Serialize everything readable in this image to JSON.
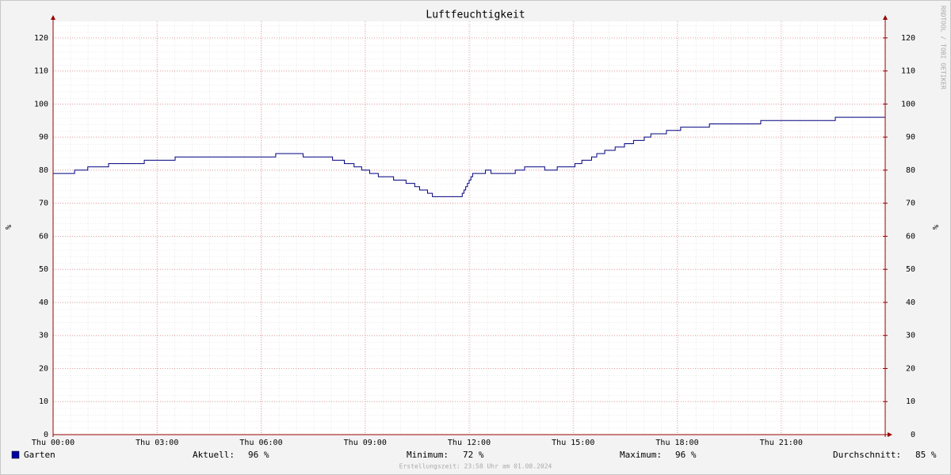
{
  "chart_data": {
    "type": "line",
    "step": true,
    "title": "Luftfeuchtigkeit",
    "y_label": "%",
    "y2_label": "%",
    "side_note": "RRDTOOL / TOBI OETIKER",
    "footer": "Erstellungszeit: 23:58 Uhr am 01.08.2024",
    "xlim": [
      0,
      24
    ],
    "xticks": [
      {
        "value": 0,
        "label": "Thu 00:00"
      },
      {
        "value": 3,
        "label": "Thu 03:00"
      },
      {
        "value": 6,
        "label": "Thu 06:00"
      },
      {
        "value": 9,
        "label": "Thu 09:00"
      },
      {
        "value": 12,
        "label": "Thu 12:00"
      },
      {
        "value": 15,
        "label": "Thu 15:00"
      },
      {
        "value": 18,
        "label": "Thu 18:00"
      },
      {
        "value": 21,
        "label": "Thu 21:00"
      }
    ],
    "ylim": [
      0,
      125
    ],
    "yticks": [
      0,
      10,
      20,
      30,
      40,
      50,
      60,
      70,
      80,
      90,
      100,
      110,
      120
    ],
    "y2lim": [
      0,
      125
    ],
    "y2ticks": [
      0,
      10,
      20,
      30,
      40,
      50,
      60,
      70,
      80,
      90,
      100,
      110,
      120
    ],
    "grid": true,
    "x": [
      0,
      0.62,
      1.0,
      1.6,
      2.63,
      3.52,
      6.42,
      7.21,
      8.06,
      8.4,
      8.68,
      8.9,
      9.13,
      9.38,
      9.82,
      10.18,
      10.43,
      10.57,
      10.8,
      10.94,
      11.8,
      11.85,
      11.9,
      11.95,
      12.0,
      12.05,
      12.1,
      12.47,
      12.63,
      13.33,
      13.6,
      14.18,
      14.54,
      15.05,
      15.25,
      15.53,
      15.68,
      15.91,
      16.21,
      16.48,
      16.74,
      17.05,
      17.24,
      17.69,
      18.1,
      18.93,
      20.41,
      22.56,
      24
    ],
    "series": [
      {
        "name": "Garten",
        "color": "#000080",
        "legend_color": "#0000a0",
        "values": [
          79,
          80,
          81,
          82,
          83,
          84,
          85,
          84,
          83,
          82,
          81,
          80,
          79,
          78,
          77,
          76,
          75,
          74,
          73,
          72,
          73,
          74,
          75,
          76,
          77,
          78,
          79,
          80,
          79,
          80,
          81,
          80,
          81,
          82,
          83,
          84,
          85,
          86,
          87,
          88,
          89,
          90,
          91,
          92,
          93,
          94,
          95,
          96,
          96
        ]
      }
    ],
    "stats": [
      {
        "label": "Aktuell:",
        "value": 96,
        "value_label": "96 %"
      },
      {
        "label": "Minimum:",
        "value": 72,
        "value_label": "72 %"
      },
      {
        "label": "Maximum:",
        "value": 96,
        "value_label": "96 %"
      },
      {
        "label": "Durchschnitt:",
        "value": 85,
        "value_label": "85 %"
      }
    ]
  }
}
